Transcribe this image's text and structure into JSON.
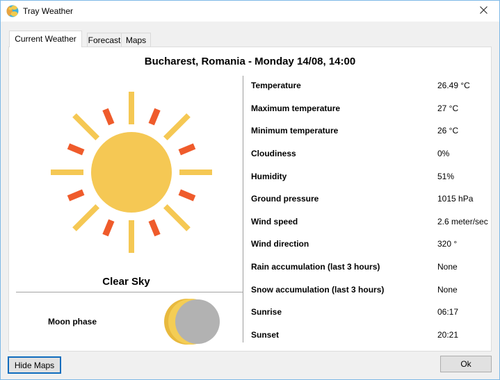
{
  "window": {
    "title": "Tray Weather"
  },
  "tabs": [
    {
      "label": "Current Weather",
      "active": true
    },
    {
      "label": "Forecast",
      "active": false
    },
    {
      "label": "Maps",
      "active": false
    }
  ],
  "header": {
    "title": "Bucharest, Romania - Monday 14/08, 14:00"
  },
  "left_panel": {
    "condition": "Clear Sky",
    "moon_phase_label": "Moon phase",
    "sun_icon": "sun-clear-sky-icon",
    "moon_icon": "waning-crescent-moon-icon"
  },
  "weather_rows": [
    {
      "label": "Temperature",
      "value": "26.49 °C"
    },
    {
      "label": "Maximum temperature",
      "value": "27 °C"
    },
    {
      "label": "Minimum temperature",
      "value": "26 °C"
    },
    {
      "label": "Cloudiness",
      "value": "0%"
    },
    {
      "label": "Humidity",
      "value": "51%"
    },
    {
      "label": "Ground pressure",
      "value": "1015 hPa"
    },
    {
      "label": "Wind speed",
      "value": "2.6 meter/sec"
    },
    {
      "label": "Wind direction",
      "value": "320 °"
    },
    {
      "label": "Rain accumulation (last 3 hours)",
      "value": "None"
    },
    {
      "label": "Snow accumulation (last 3 hours)",
      "value": "None"
    },
    {
      "label": "Sunrise",
      "value": "06:17"
    },
    {
      "label": "Sunset",
      "value": "20:21"
    }
  ],
  "footer": {
    "hide_maps_label": "Hide Maps",
    "ok_label": "Ok"
  },
  "colors": {
    "window_border": "#7db8e6",
    "titlebar_bg": "#ffffff",
    "chrome_bg": "#f0f0f0",
    "pane_bg": "#ffffff",
    "sun_yellow": "#f5c854",
    "sun_orange": "#ef5b2b",
    "moon_yellow_bright": "#f4cd55",
    "moon_yellow_dark": "#e8b93e",
    "moon_gray": "#b2b2b2",
    "divider_gray": "#9d9d9d",
    "focus_button_border": "#0f6cbd",
    "button_face": "#e1e1e1"
  }
}
